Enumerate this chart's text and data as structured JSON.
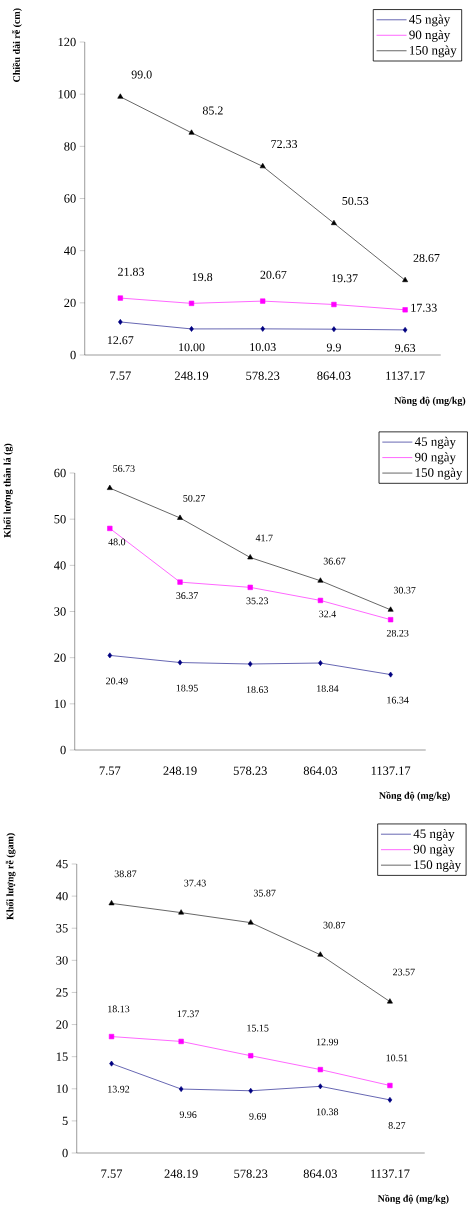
{
  "chart_data": [
    {
      "type": "line",
      "ylabel": "Chiều dài rễ (cm)",
      "xlabel": "Nồng độ (mg/kg)",
      "categories": [
        "7.57",
        "248.19",
        "578.23",
        "864.03",
        "1137.17"
      ],
      "ylim": [
        0,
        120
      ],
      "yticks": [
        0,
        20,
        40,
        60,
        80,
        100,
        120
      ],
      "legend": "top right",
      "grid": false,
      "series": [
        {
          "name": "45 ngày",
          "color": "#000080",
          "marker": "diamond",
          "values": [
            12.67,
            10.0,
            10.03,
            9.9,
            9.63
          ],
          "value_labels": [
            "12.67",
            "10.00",
            "10.03",
            "9.9",
            "9.63"
          ]
        },
        {
          "name": "90 ngày",
          "color": "#ff00ff",
          "marker": "square",
          "values": [
            21.83,
            19.8,
            20.67,
            19.37,
            17.33
          ],
          "value_labels": [
            "21.83",
            "19.8",
            "20.67",
            "19.37",
            "17.33"
          ]
        },
        {
          "name": "150 ngày",
          "color": "#000000",
          "marker": "triangle",
          "values": [
            99.0,
            85.2,
            72.33,
            50.53,
            28.67
          ],
          "value_labels": [
            "99.0",
            "85.2",
            "72.33",
            "50.53",
            "28.67"
          ]
        }
      ]
    },
    {
      "type": "line",
      "ylabel": "Khối lượng thân lá (g)",
      "xlabel": "Nồng độ (mg/kg)",
      "categories": [
        "7.57",
        "248.19",
        "578.23",
        "864.03",
        "1137.17"
      ],
      "ylim": [
        0,
        60
      ],
      "yticks": [
        0,
        10,
        20,
        30,
        40,
        50,
        60
      ],
      "legend": "top right",
      "grid": false,
      "series": [
        {
          "name": "45 ngày",
          "color": "#000080",
          "marker": "diamond",
          "values": [
            20.49,
            18.95,
            18.63,
            18.84,
            16.34
          ],
          "value_labels": [
            "20.49",
            "18.95",
            "18.63",
            "18.84",
            "16.34"
          ]
        },
        {
          "name": "90 ngày",
          "color": "#ff00ff",
          "marker": "square",
          "values": [
            48.0,
            36.37,
            35.23,
            32.4,
            28.23
          ],
          "value_labels": [
            "48.0",
            "36.37",
            "35.23",
            "32.4",
            "28.23"
          ]
        },
        {
          "name": "150 ngày",
          "color": "#000000",
          "marker": "triangle",
          "values": [
            56.73,
            50.27,
            41.7,
            36.67,
            30.37
          ],
          "value_labels": [
            "56.73",
            "50.27",
            "41.7",
            "36.67",
            "30.37"
          ]
        }
      ]
    },
    {
      "type": "line",
      "ylabel": "Khối lượng rễ (gam)",
      "xlabel": "Nồng độ (mg/kg)",
      "categories": [
        "7.57",
        "248.19",
        "578.23",
        "864.03",
        "1137.17"
      ],
      "ylim": [
        0,
        45
      ],
      "yticks": [
        0,
        5,
        10,
        15,
        20,
        25,
        30,
        35,
        40,
        45
      ],
      "legend": "top right",
      "grid": false,
      "series": [
        {
          "name": "45 ngày",
          "color": "#000080",
          "marker": "diamond",
          "values": [
            13.92,
            9.96,
            9.69,
            10.38,
            8.27
          ],
          "value_labels": [
            "13.92",
            "9.96",
            "9.69",
            "10.38",
            "8.27"
          ]
        },
        {
          "name": "90 ngày",
          "color": "#ff00ff",
          "marker": "square",
          "values": [
            18.13,
            17.37,
            15.15,
            12.99,
            10.51
          ],
          "value_labels": [
            "18.13",
            "17.37",
            "15.15",
            "12.99",
            "10.51"
          ]
        },
        {
          "name": "150 ngày",
          "color": "#000000",
          "marker": "triangle",
          "values": [
            38.87,
            37.43,
            35.87,
            30.87,
            23.57
          ],
          "value_labels": [
            "38.87",
            "37.43",
            "35.87",
            "30.87",
            "23.57"
          ]
        }
      ]
    }
  ]
}
